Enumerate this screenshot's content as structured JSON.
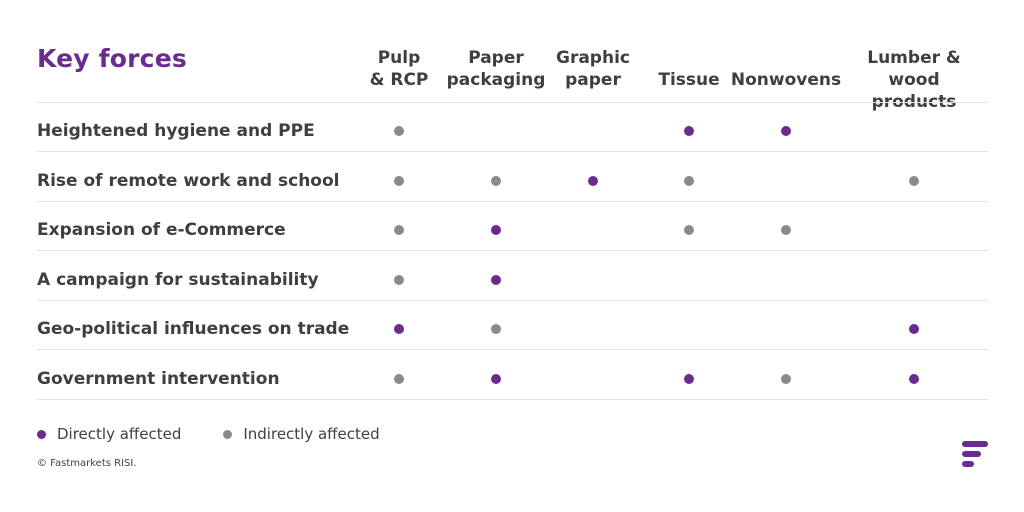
{
  "chart_data": {
    "type": "table",
    "title": "Key forces",
    "columns": [
      "Pulp\n& RCP",
      "Paper\npackaging",
      "Graphic\npaper",
      "Tissue",
      "Nonwovens",
      "Lumber &\nwood products"
    ],
    "rows": [
      {
        "label": "Heightened hygiene and PPE",
        "cells": [
          "indirect",
          null,
          null,
          "direct",
          "direct",
          null
        ]
      },
      {
        "label": "Rise of remote work and school",
        "cells": [
          "indirect",
          "indirect",
          "direct",
          "indirect",
          null,
          "indirect"
        ]
      },
      {
        "label": "Expansion of e-Commerce",
        "cells": [
          "indirect",
          "direct",
          null,
          "indirect",
          "indirect",
          null
        ]
      },
      {
        "label": "A campaign for sustainability",
        "cells": [
          "indirect",
          "direct",
          null,
          null,
          null,
          null
        ]
      },
      {
        "label": "Geo-political influences on trade",
        "cells": [
          "direct",
          "indirect",
          null,
          null,
          null,
          "direct"
        ]
      },
      {
        "label": "Government intervention",
        "cells": [
          "indirect",
          "direct",
          null,
          "direct",
          "indirect",
          "direct"
        ]
      }
    ],
    "legend": {
      "direct": "Directly affected",
      "indirect": "Indirectly affected"
    }
  },
  "colors": {
    "direct": "#6a2b8f",
    "indirect": "#8a8a8a",
    "title": "#6a2b8f",
    "logo": "#6a2b8f"
  },
  "footer": {
    "copyright": "© Fastmarkets RISI."
  },
  "logo_icon": "fastmarkets-logo-icon"
}
